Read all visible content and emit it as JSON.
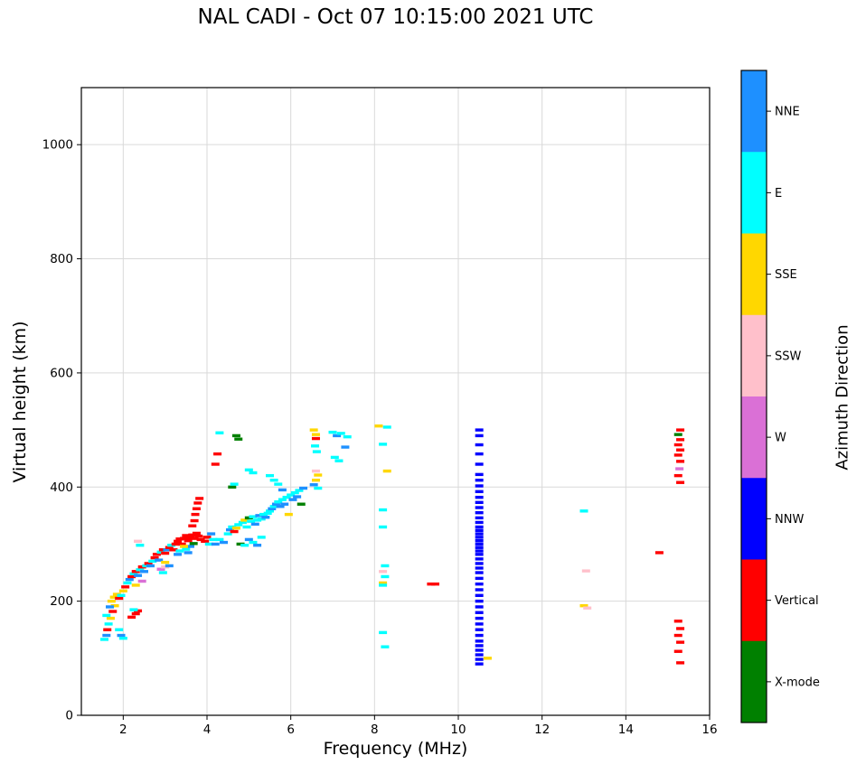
{
  "chart_data": {
    "type": "scatter",
    "title": "NAL CADI - Oct 07 10:15:00 2021 UTC",
    "xlabel": "Frequency (MHz)",
    "ylabel": "Virtual height (km)",
    "xlim": [
      1,
      16
    ],
    "ylim": [
      0,
      1100
    ],
    "xticks": [
      2,
      4,
      6,
      8,
      10,
      12,
      14,
      16
    ],
    "yticks": [
      0,
      200,
      400,
      600,
      800,
      1000
    ],
    "grid": true,
    "marker": {
      "width": 9,
      "height": 3.4
    },
    "colorbar": {
      "label": "Azimuth Direction",
      "categories": [
        {
          "label": "NNE",
          "color": "#1E90FF"
        },
        {
          "label": "E",
          "color": "#00FFFF"
        },
        {
          "label": "SSE",
          "color": "#FFD700"
        },
        {
          "label": "SSW",
          "color": "#FFC0CB"
        },
        {
          "label": "W",
          "color": "#DA70D6"
        },
        {
          "label": "NNW",
          "color": "#0000FF"
        },
        {
          "label": "Vertical",
          "color": "#FF0000"
        },
        {
          "label": "X-mode",
          "color": "#008000"
        }
      ]
    },
    "points": [
      [
        1.55,
        133,
        "E"
      ],
      [
        1.6,
        140,
        "NNE"
      ],
      [
        1.62,
        150,
        "Vertical"
      ],
      [
        1.65,
        160,
        "E"
      ],
      [
        1.7,
        170,
        "SSE"
      ],
      [
        1.6,
        175,
        "E"
      ],
      [
        1.75,
        182,
        "Vertical"
      ],
      [
        1.8,
        192,
        "SSE"
      ],
      [
        1.72,
        200,
        "SSE"
      ],
      [
        1.78,
        207,
        "SSE"
      ],
      [
        1.85,
        212,
        "SSE"
      ],
      [
        1.9,
        205,
        "Vertical"
      ],
      [
        1.95,
        210,
        "E"
      ],
      [
        1.68,
        190,
        "NNE"
      ],
      [
        1.9,
        150,
        "E"
      ],
      [
        1.95,
        140,
        "NNE"
      ],
      [
        2.0,
        135,
        "E"
      ],
      [
        2.2,
        172,
        "Vertical"
      ],
      [
        2.3,
        178,
        "Vertical"
      ],
      [
        2.35,
        183,
        "Vertical"
      ],
      [
        2.25,
        185,
        "E"
      ],
      [
        2.0,
        218,
        "SSE"
      ],
      [
        2.05,
        225,
        "Vertical"
      ],
      [
        2.1,
        232,
        "E"
      ],
      [
        2.15,
        238,
        "NNE"
      ],
      [
        2.2,
        243,
        "Vertical"
      ],
      [
        2.25,
        248,
        "E"
      ],
      [
        2.3,
        252,
        "Vertical"
      ],
      [
        2.35,
        245,
        "NNE"
      ],
      [
        2.4,
        255,
        "E"
      ],
      [
        2.45,
        260,
        "Vertical"
      ],
      [
        2.5,
        252,
        "NNE"
      ],
      [
        2.55,
        262,
        "E"
      ],
      [
        2.6,
        266,
        "Vertical"
      ],
      [
        2.3,
        228,
        "SSE"
      ],
      [
        2.45,
        235,
        "W"
      ],
      [
        2.35,
        305,
        "SSW"
      ],
      [
        2.4,
        298,
        "E"
      ],
      [
        2.65,
        262,
        "NNE"
      ],
      [
        2.7,
        270,
        "E"
      ],
      [
        2.75,
        276,
        "Vertical"
      ],
      [
        2.8,
        282,
        "Vertical"
      ],
      [
        2.85,
        272,
        "NNE"
      ],
      [
        2.9,
        286,
        "E"
      ],
      [
        2.95,
        290,
        "Vertical"
      ],
      [
        3.0,
        284,
        "Vertical"
      ],
      [
        3.0,
        268,
        "SSE"
      ],
      [
        3.05,
        290,
        "NNE"
      ],
      [
        3.1,
        294,
        "Vertical"
      ],
      [
        3.15,
        298,
        "E"
      ],
      [
        3.2,
        290,
        "Vertical"
      ],
      [
        2.9,
        256,
        "W"
      ],
      [
        3.0,
        260,
        "SSW"
      ],
      [
        2.95,
        250,
        "E"
      ],
      [
        3.1,
        262,
        "NNE"
      ],
      [
        3.25,
        300,
        "Vertical"
      ],
      [
        3.3,
        305,
        "Vertical"
      ],
      [
        3.35,
        309,
        "Vertical"
      ],
      [
        3.4,
        300,
        "Vertical"
      ],
      [
        3.45,
        310,
        "Vertical"
      ],
      [
        3.5,
        315,
        "Vertical"
      ],
      [
        3.55,
        306,
        "Vertical"
      ],
      [
        3.6,
        311,
        "Vertical"
      ],
      [
        3.65,
        316,
        "Vertical"
      ],
      [
        3.7,
        310,
        "Vertical"
      ],
      [
        3.5,
        291,
        "E"
      ],
      [
        3.55,
        285,
        "NNE"
      ],
      [
        3.6,
        296,
        "NNE"
      ],
      [
        3.68,
        301,
        "X-mode"
      ],
      [
        3.75,
        319,
        "Vertical"
      ],
      [
        3.8,
        314,
        "Vertical"
      ],
      [
        3.85,
        308,
        "Vertical"
      ],
      [
        3.45,
        296,
        "SSE"
      ],
      [
        3.35,
        288,
        "E"
      ],
      [
        3.3,
        282,
        "NNE"
      ],
      [
        3.65,
        332,
        "Vertical"
      ],
      [
        3.7,
        341,
        "Vertical"
      ],
      [
        3.72,
        352,
        "Vertical"
      ],
      [
        3.75,
        362,
        "Vertical"
      ],
      [
        3.78,
        372,
        "Vertical"
      ],
      [
        3.82,
        380,
        "Vertical"
      ],
      [
        3.95,
        305,
        "Vertical"
      ],
      [
        4.0,
        312,
        "Vertical"
      ],
      [
        4.05,
        300,
        "E"
      ],
      [
        4.1,
        318,
        "NNE"
      ],
      [
        4.15,
        308,
        "E"
      ],
      [
        4.2,
        300,
        "NNE"
      ],
      [
        4.3,
        308,
        "E"
      ],
      [
        4.4,
        303,
        "NNE"
      ],
      [
        4.2,
        440,
        "Vertical"
      ],
      [
        4.25,
        458,
        "Vertical"
      ],
      [
        4.3,
        495,
        "E"
      ],
      [
        4.5,
        318,
        "E"
      ],
      [
        4.55,
        325,
        "NNE"
      ],
      [
        4.6,
        330,
        "E"
      ],
      [
        4.65,
        322,
        "Vertical"
      ],
      [
        4.7,
        328,
        "SSE"
      ],
      [
        4.75,
        334,
        "E"
      ],
      [
        4.8,
        300,
        "X-mode"
      ],
      [
        4.85,
        338,
        "E"
      ],
      [
        4.9,
        342,
        "SSE"
      ],
      [
        4.95,
        330,
        "E"
      ],
      [
        5.0,
        346,
        "X-mode"
      ],
      [
        5.05,
        340,
        "E"
      ],
      [
        5.1,
        348,
        "E"
      ],
      [
        5.15,
        335,
        "NNE"
      ],
      [
        5.2,
        342,
        "E"
      ],
      [
        5.25,
        350,
        "NNE"
      ],
      [
        5.3,
        344,
        "E"
      ],
      [
        5.35,
        352,
        "E"
      ],
      [
        5.4,
        347,
        "NNE"
      ],
      [
        5.45,
        354,
        "E"
      ],
      [
        4.7,
        490,
        "X-mode"
      ],
      [
        4.75,
        484,
        "X-mode"
      ],
      [
        4.6,
        400,
        "X-mode"
      ],
      [
        4.65,
        405,
        "E"
      ],
      [
        5.0,
        430,
        "E"
      ],
      [
        5.1,
        425,
        "E"
      ],
      [
        4.9,
        298,
        "E"
      ],
      [
        5.0,
        308,
        "NNE"
      ],
      [
        5.1,
        303,
        "E"
      ],
      [
        5.2,
        298,
        "NNE"
      ],
      [
        5.3,
        312,
        "E"
      ],
      [
        5.5,
        358,
        "E"
      ],
      [
        5.55,
        362,
        "NNE"
      ],
      [
        5.6,
        366,
        "E"
      ],
      [
        5.65,
        370,
        "NNE"
      ],
      [
        5.7,
        374,
        "E"
      ],
      [
        5.75,
        366,
        "NNE"
      ],
      [
        5.8,
        378,
        "E"
      ],
      [
        5.85,
        370,
        "NNE"
      ],
      [
        5.9,
        382,
        "E"
      ],
      [
        5.95,
        352,
        "SSE"
      ],
      [
        6.0,
        386,
        "E"
      ],
      [
        6.05,
        378,
        "NNE"
      ],
      [
        6.1,
        390,
        "E"
      ],
      [
        6.15,
        383,
        "NNE"
      ],
      [
        6.2,
        394,
        "E"
      ],
      [
        6.25,
        370,
        "X-mode"
      ],
      [
        6.3,
        398,
        "NNE"
      ],
      [
        5.6,
        412,
        "E"
      ],
      [
        5.7,
        405,
        "E"
      ],
      [
        5.8,
        395,
        "NNE"
      ],
      [
        5.5,
        420,
        "E"
      ],
      [
        6.55,
        500,
        "SSE"
      ],
      [
        6.6,
        492,
        "SSE"
      ],
      [
        6.6,
        485,
        "Vertical"
      ],
      [
        6.58,
        472,
        "E"
      ],
      [
        6.62,
        462,
        "E"
      ],
      [
        6.6,
        428,
        "SSW"
      ],
      [
        6.65,
        421,
        "SSE"
      ],
      [
        6.6,
        412,
        "SSE"
      ],
      [
        6.55,
        404,
        "NNE"
      ],
      [
        6.65,
        398,
        "E"
      ],
      [
        7.0,
        496,
        "E"
      ],
      [
        7.1,
        490,
        "NNE"
      ],
      [
        7.2,
        494,
        "E"
      ],
      [
        7.35,
        488,
        "E"
      ],
      [
        7.05,
        452,
        "E"
      ],
      [
        7.15,
        446,
        "E"
      ],
      [
        7.3,
        470,
        "NNE"
      ],
      [
        8.1,
        507,
        "SSE"
      ],
      [
        8.3,
        505,
        "E"
      ],
      [
        8.2,
        475,
        "E"
      ],
      [
        8.3,
        428,
        "SSE"
      ],
      [
        8.2,
        360,
        "E"
      ],
      [
        8.2,
        330,
        "E"
      ],
      [
        8.25,
        262,
        "E"
      ],
      [
        8.2,
        252,
        "SSW"
      ],
      [
        8.25,
        243,
        "E"
      ],
      [
        8.2,
        232,
        "SSE"
      ],
      [
        8.2,
        228,
        "E"
      ],
      [
        8.2,
        145,
        "E"
      ],
      [
        8.25,
        120,
        "E"
      ],
      [
        9.35,
        230,
        "Vertical"
      ],
      [
        9.45,
        230,
        "Vertical"
      ],
      [
        10.5,
        90,
        "NNW"
      ],
      [
        10.5,
        98,
        "NNW"
      ],
      [
        10.5,
        106,
        "NNW"
      ],
      [
        10.5,
        114,
        "NNW"
      ],
      [
        10.5,
        122,
        "NNW"
      ],
      [
        10.5,
        130,
        "NNW"
      ],
      [
        10.5,
        140,
        "NNW"
      ],
      [
        10.5,
        150,
        "NNW"
      ],
      [
        10.5,
        160,
        "NNW"
      ],
      [
        10.5,
        170,
        "NNW"
      ],
      [
        10.5,
        180,
        "NNW"
      ],
      [
        10.5,
        190,
        "NNW"
      ],
      [
        10.5,
        200,
        "NNW"
      ],
      [
        10.5,
        210,
        "NNW"
      ],
      [
        10.5,
        220,
        "NNW"
      ],
      [
        10.5,
        230,
        "NNW"
      ],
      [
        10.5,
        240,
        "NNW"
      ],
      [
        10.5,
        250,
        "NNW"
      ],
      [
        10.5,
        258,
        "NNW"
      ],
      [
        10.5,
        266,
        "NNW"
      ],
      [
        10.5,
        274,
        "NNW"
      ],
      [
        10.5,
        282,
        "NNW"
      ],
      [
        10.5,
        288,
        "NNW"
      ],
      [
        10.5,
        294,
        "NNW"
      ],
      [
        10.5,
        300,
        "NNW"
      ],
      [
        10.5,
        306,
        "NNW"
      ],
      [
        10.5,
        312,
        "NNW"
      ],
      [
        10.5,
        318,
        "NNW"
      ],
      [
        10.5,
        324,
        "NNW"
      ],
      [
        10.5,
        330,
        "NNW"
      ],
      [
        10.5,
        338,
        "NNW"
      ],
      [
        10.5,
        346,
        "NNW"
      ],
      [
        10.5,
        355,
        "NNW"
      ],
      [
        10.5,
        364,
        "NNW"
      ],
      [
        10.5,
        373,
        "NNW"
      ],
      [
        10.5,
        382,
        "NNW"
      ],
      [
        10.5,
        392,
        "NNW"
      ],
      [
        10.5,
        402,
        "NNW"
      ],
      [
        10.5,
        412,
        "NNW"
      ],
      [
        10.5,
        422,
        "NNW"
      ],
      [
        10.5,
        440,
        "NNW"
      ],
      [
        10.5,
        458,
        "NNW"
      ],
      [
        10.5,
        474,
        "NNW"
      ],
      [
        10.5,
        490,
        "NNW"
      ],
      [
        10.5,
        500,
        "NNW"
      ],
      [
        10.7,
        100,
        "SSE"
      ],
      [
        13.0,
        358,
        "E"
      ],
      [
        13.05,
        253,
        "SSW"
      ],
      [
        13.0,
        192,
        "SSE"
      ],
      [
        13.08,
        188,
        "SSW"
      ],
      [
        14.8,
        285,
        "Vertical"
      ],
      [
        15.3,
        500,
        "Vertical"
      ],
      [
        15.25,
        492,
        "X-mode"
      ],
      [
        15.3,
        483,
        "Vertical"
      ],
      [
        15.25,
        474,
        "Vertical"
      ],
      [
        15.3,
        465,
        "Vertical"
      ],
      [
        15.25,
        456,
        "Vertical"
      ],
      [
        15.3,
        445,
        "Vertical"
      ],
      [
        15.28,
        432,
        "W"
      ],
      [
        15.25,
        420,
        "Vertical"
      ],
      [
        15.3,
        408,
        "Vertical"
      ],
      [
        15.25,
        165,
        "Vertical"
      ],
      [
        15.3,
        152,
        "Vertical"
      ],
      [
        15.25,
        140,
        "Vertical"
      ],
      [
        15.3,
        128,
        "Vertical"
      ],
      [
        15.25,
        112,
        "Vertical"
      ],
      [
        15.3,
        92,
        "Vertical"
      ]
    ]
  }
}
